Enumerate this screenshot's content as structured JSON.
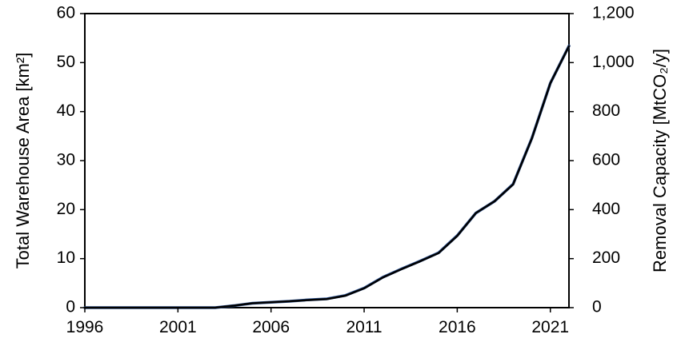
{
  "chart_data": {
    "type": "line",
    "title": "",
    "xlabel": "",
    "ylabel": "Total Warehouse Area [km²]",
    "y2label": "Removal Capacity [MtCO₂/y]",
    "xlim": [
      1996,
      2022
    ],
    "ylim": [
      0,
      60
    ],
    "y2lim": [
      0,
      1200
    ],
    "x_ticks": [
      "1996",
      "2001",
      "2006",
      "2011",
      "2016",
      "2021"
    ],
    "y_ticks": [
      "0",
      "10",
      "20",
      "30",
      "40",
      "50",
      "60"
    ],
    "y2_ticks": [
      "0",
      "200",
      "400",
      "600",
      "800",
      "1,000",
      "1,200"
    ],
    "grid": false,
    "legend": "none",
    "series": [
      {
        "axis": "left",
        "color": "#2E5597",
        "x": [
          1996,
          1997,
          1998,
          1999,
          2000,
          2001,
          2002,
          2003,
          2004,
          2005,
          2006,
          2007,
          2008,
          2009,
          2010,
          2011,
          2012,
          2013,
          2014,
          2015,
          2016,
          2017,
          2018,
          2019,
          2020,
          2021,
          2022
        ],
        "values": [
          0,
          0,
          0,
          0,
          0,
          0,
          0,
          0,
          0.4,
          0.9,
          1.1,
          1.3,
          1.6,
          1.8,
          2.5,
          4.0,
          6.2,
          7.9,
          9.5,
          11.2,
          14.7,
          19.3,
          21.7,
          25.2,
          34.5,
          45.8,
          53.4
        ]
      },
      {
        "axis": "right",
        "color": "#000000",
        "x": [
          1996,
          1997,
          1998,
          1999,
          2000,
          2001,
          2002,
          2003,
          2004,
          2005,
          2006,
          2007,
          2008,
          2009,
          2010,
          2011,
          2012,
          2013,
          2014,
          2015,
          2016,
          2017,
          2018,
          2019,
          2020,
          2021,
          2022
        ],
        "values": [
          0,
          0,
          0,
          0,
          0,
          0,
          0,
          0,
          8,
          18,
          22,
          26,
          31,
          35,
          49,
          79,
          123,
          157,
          189,
          223,
          293,
          386,
          434,
          503,
          689,
          916,
          1067
        ]
      }
    ]
  }
}
